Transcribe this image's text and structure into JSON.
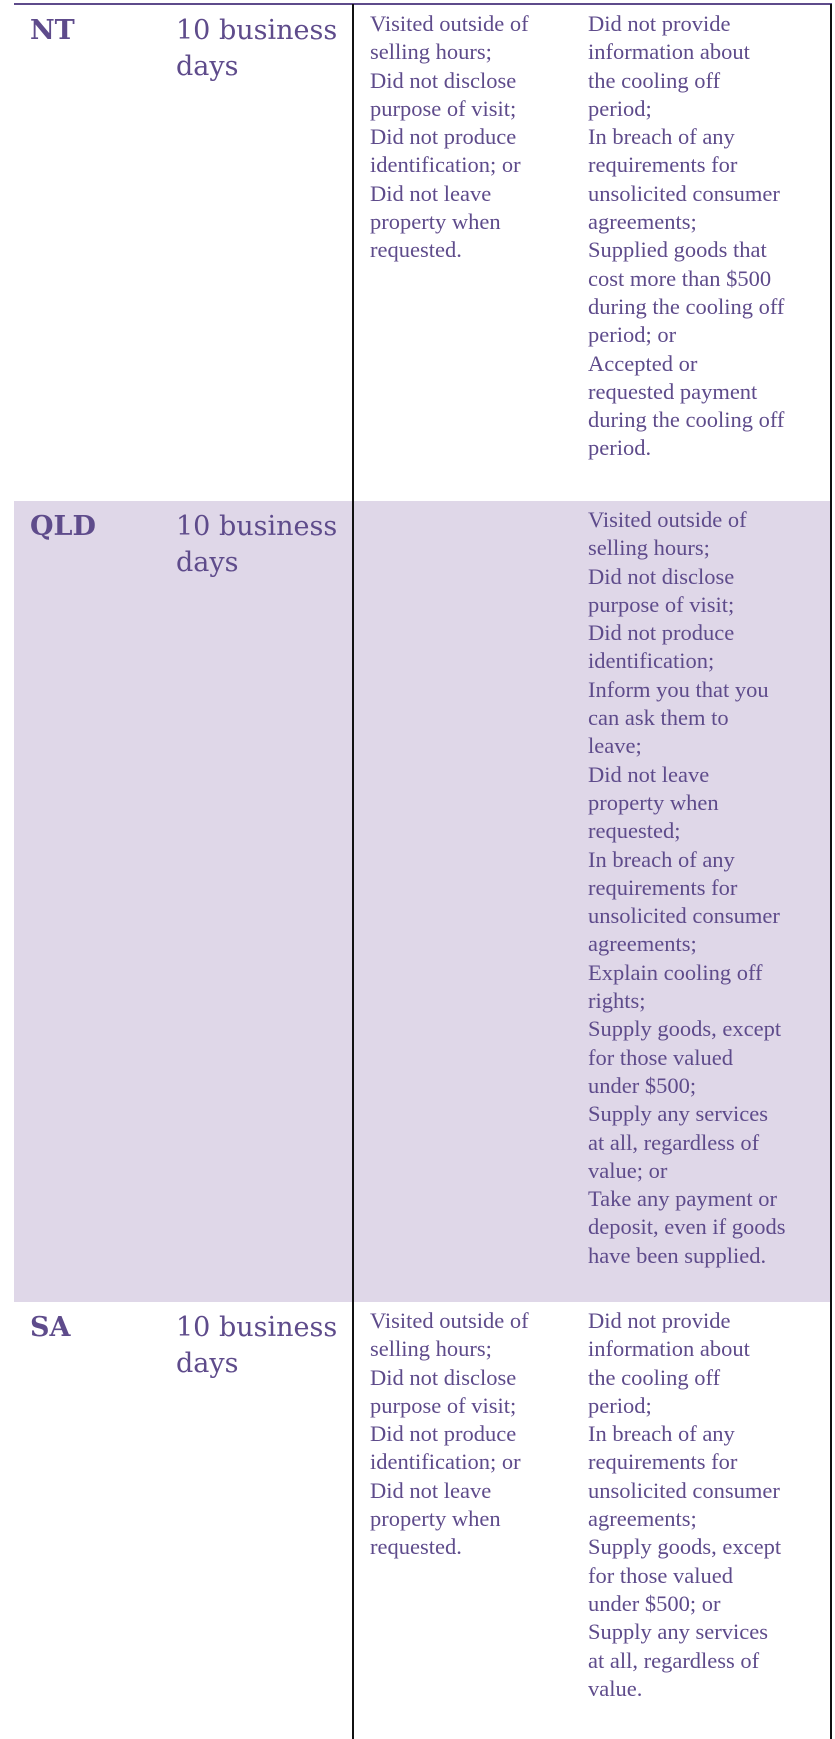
{
  "table": {
    "rows": [
      {
        "state": "NT",
        "period": [
          "10 business",
          "days"
        ],
        "col3": [
          "Visited outside of",
          "selling hours;",
          "Did not disclose",
          "purpose of visit;",
          "Did not produce",
          "identification; or",
          "Did not leave",
          "property when",
          "requested."
        ],
        "col4": [
          "Did not provide",
          "information about",
          "the cooling off",
          "period;",
          "In breach of any",
          "requirements for",
          "unsolicited consumer",
          "agreements;",
          "Supplied goods that",
          "cost more than $500",
          "during the cooling off",
          "period; or",
          "Accepted or",
          "requested payment",
          "during the cooling off",
          "period."
        ]
      },
      {
        "state": "QLD",
        "period": [
          "10 business",
          "days"
        ],
        "col3": [],
        "col4": [
          "Visited outside of",
          "selling hours;",
          "Did not disclose",
          "purpose of visit;",
          "Did not produce",
          "identification;",
          "Inform you that you",
          "can ask them to",
          "leave;",
          "Did not leave",
          "property when",
          "requested;",
          "In breach of any",
          "requirements for",
          "unsolicited consumer",
          "agreements;",
          "Explain cooling off",
          "rights;",
          "Supply goods, except",
          "for those valued",
          "under $500;",
          "Supply any services",
          "at all, regardless of",
          "value; or",
          "Take any payment or",
          "deposit, even if goods",
          "have been supplied."
        ]
      },
      {
        "state": "SA",
        "period": [
          "10 business",
          "days"
        ],
        "col3": [
          "Visited outside of",
          "selling hours;",
          "Did not disclose",
          "purpose of visit;",
          "Did not produce",
          "identification; or",
          "Did not leave",
          "property when",
          "requested."
        ],
        "col4": [
          "Did not provide",
          "information about",
          "the cooling off",
          "period;",
          "In breach of any",
          "requirements for",
          "unsolicited consumer",
          "agreements;",
          "Supply goods, except",
          "for those valued",
          "under $500; or",
          "Supply any services",
          "at all, regardless of",
          "value."
        ]
      }
    ]
  }
}
